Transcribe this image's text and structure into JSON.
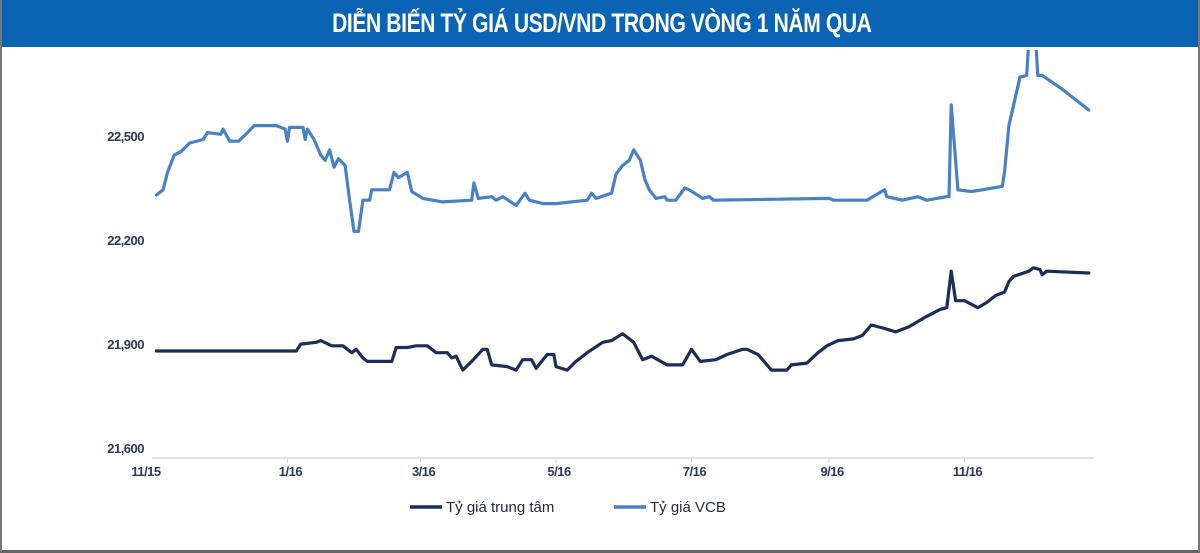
{
  "header": {
    "title": "DIỄN BIẾN TỶ GIÁ USD/VND TRONG VÒNG 1 NĂM QUA"
  },
  "chart_data": {
    "type": "line",
    "title": "DIỄN BIẾN TỶ GIÁ USD/VND TRONG VÒNG 1 NĂM QUA",
    "xlabel": "",
    "ylabel": "",
    "ylim": [
      21600,
      22762
    ],
    "xlim": [
      "2015-11-01",
      "2017-01-01"
    ],
    "yticks": [
      21600,
      21900,
      22200,
      22500
    ],
    "ytick_labels": [
      "21,600",
      "21,900",
      "22,200",
      "22,500"
    ],
    "xticks": [
      "2015-11-01",
      "2016-01-01",
      "2016-03-01",
      "2016-05-01",
      "2016-07-01",
      "2016-09-01",
      "2016-11-01"
    ],
    "xtick_labels": [
      "11/15",
      "1/16",
      "3/16",
      "5/16",
      "7/16",
      "9/16",
      "11/16"
    ],
    "grid": false,
    "legend": "bottom",
    "series": [
      {
        "name": "Tỷ giá trung tâm",
        "color": "#1c2d57",
        "points": [
          [
            "2015-11-03",
            21900
          ],
          [
            "2016-01-05",
            21900
          ],
          [
            "2016-01-07",
            21920
          ],
          [
            "2016-01-14",
            21925
          ],
          [
            "2016-01-16",
            21930
          ],
          [
            "2016-01-21",
            21915
          ],
          [
            "2016-01-26",
            21915
          ],
          [
            "2016-01-30",
            21895
          ],
          [
            "2016-02-01",
            21905
          ],
          [
            "2016-02-04",
            21880
          ],
          [
            "2016-02-06",
            21870
          ],
          [
            "2016-02-17",
            21870
          ],
          [
            "2016-02-19",
            21910
          ],
          [
            "2016-02-24",
            21910
          ],
          [
            "2016-02-28",
            21915
          ],
          [
            "2016-03-04",
            21915
          ],
          [
            "2016-03-08",
            21895
          ],
          [
            "2016-03-13",
            21895
          ],
          [
            "2016-03-15",
            21880
          ],
          [
            "2016-03-17",
            21885
          ],
          [
            "2016-03-20",
            21845
          ],
          [
            "2016-03-24",
            21870
          ],
          [
            "2016-03-29",
            21905
          ],
          [
            "2016-03-31",
            21905
          ],
          [
            "2016-04-02",
            21860
          ],
          [
            "2016-04-09",
            21855
          ],
          [
            "2016-04-13",
            21845
          ],
          [
            "2016-04-16",
            21875
          ],
          [
            "2016-04-20",
            21875
          ],
          [
            "2016-04-22",
            21850
          ],
          [
            "2016-04-27",
            21890
          ],
          [
            "2016-04-30",
            21890
          ],
          [
            "2016-05-01",
            21855
          ],
          [
            "2016-05-06",
            21845
          ],
          [
            "2016-05-10",
            21870
          ],
          [
            "2016-05-15",
            21895
          ],
          [
            "2016-05-22",
            21925
          ],
          [
            "2016-05-26",
            21930
          ],
          [
            "2016-05-31",
            21950
          ],
          [
            "2016-06-05",
            21925
          ],
          [
            "2016-06-09",
            21875
          ],
          [
            "2016-06-13",
            21885
          ],
          [
            "2016-06-20",
            21860
          ],
          [
            "2016-06-27",
            21860
          ],
          [
            "2016-07-01",
            21905
          ],
          [
            "2016-07-05",
            21870
          ],
          [
            "2016-07-12",
            21875
          ],
          [
            "2016-07-17",
            21890
          ],
          [
            "2016-07-24",
            21905
          ],
          [
            "2016-07-26",
            21905
          ],
          [
            "2016-07-31",
            21890
          ],
          [
            "2016-08-06",
            21845
          ],
          [
            "2016-08-13",
            21845
          ],
          [
            "2016-08-15",
            21860
          ],
          [
            "2016-08-22",
            21865
          ],
          [
            "2016-08-27",
            21895
          ],
          [
            "2016-08-31",
            21915
          ],
          [
            "2016-09-05",
            21930
          ],
          [
            "2016-09-12",
            21935
          ],
          [
            "2016-09-16",
            21945
          ],
          [
            "2016-09-20",
            21975
          ],
          [
            "2016-09-26",
            21965
          ],
          [
            "2016-10-01",
            21955
          ],
          [
            "2016-10-07",
            21970
          ],
          [
            "2016-10-15",
            22000
          ],
          [
            "2016-10-21",
            22020
          ],
          [
            "2016-10-24",
            22025
          ],
          [
            "2016-10-26",
            22130
          ],
          [
            "2016-10-28",
            22045
          ],
          [
            "2016-11-01",
            22045
          ],
          [
            "2016-11-07",
            22025
          ],
          [
            "2016-11-11",
            22040
          ],
          [
            "2016-11-15",
            22060
          ],
          [
            "2016-11-19",
            22070
          ],
          [
            "2016-11-21",
            22100
          ],
          [
            "2016-11-23",
            22115
          ],
          [
            "2016-11-30",
            22130
          ],
          [
            "2016-12-02",
            22140
          ],
          [
            "2016-12-05",
            22135
          ],
          [
            "2016-12-06",
            22120
          ],
          [
            "2016-12-08",
            22130
          ],
          [
            "2016-12-27",
            22125
          ]
        ]
      },
      {
        "name": "Tỷ giá VCB",
        "color": "#4a80c4",
        "points": [
          [
            "2015-11-03",
            22350
          ],
          [
            "2015-11-06",
            22365
          ],
          [
            "2015-11-08",
            22415
          ],
          [
            "2015-11-11",
            22465
          ],
          [
            "2015-11-14",
            22475
          ],
          [
            "2015-11-18",
            22500
          ],
          [
            "2015-11-24",
            22510
          ],
          [
            "2015-11-26",
            22530
          ],
          [
            "2015-12-02",
            22525
          ],
          [
            "2015-12-03",
            22540
          ],
          [
            "2015-12-06",
            22505
          ],
          [
            "2015-12-10",
            22505
          ],
          [
            "2015-12-14",
            22530
          ],
          [
            "2015-12-17",
            22550
          ],
          [
            "2015-12-27",
            22550
          ],
          [
            "2015-12-31",
            22540
          ],
          [
            "2016-01-01",
            22505
          ],
          [
            "2016-01-02",
            22545
          ],
          [
            "2016-01-08",
            22545
          ],
          [
            "2016-01-09",
            22510
          ],
          [
            "2016-01-10",
            22540
          ],
          [
            "2016-01-13",
            22510
          ],
          [
            "2016-01-16",
            22465
          ],
          [
            "2016-01-18",
            22450
          ],
          [
            "2016-01-20",
            22480
          ],
          [
            "2016-01-22",
            22430
          ],
          [
            "2016-01-24",
            22455
          ],
          [
            "2016-01-27",
            22435
          ],
          [
            "2016-01-29",
            22335
          ],
          [
            "2016-01-30",
            22290
          ],
          [
            "2016-01-31",
            22245
          ],
          [
            "2016-02-02",
            22245
          ],
          [
            "2016-02-04",
            22335
          ],
          [
            "2016-02-07",
            22335
          ],
          [
            "2016-02-08",
            22365
          ],
          [
            "2016-02-16",
            22365
          ],
          [
            "2016-02-18",
            22415
          ],
          [
            "2016-02-20",
            22400
          ],
          [
            "2016-02-24",
            22415
          ],
          [
            "2016-02-26",
            22360
          ],
          [
            "2016-03-02",
            22340
          ],
          [
            "2016-03-11",
            22330
          ],
          [
            "2016-03-24",
            22335
          ],
          [
            "2016-03-25",
            22385
          ],
          [
            "2016-03-27",
            22340
          ],
          [
            "2016-04-02",
            22345
          ],
          [
            "2016-04-04",
            22335
          ],
          [
            "2016-04-07",
            22345
          ],
          [
            "2016-04-13",
            22320
          ],
          [
            "2016-04-17",
            22355
          ],
          [
            "2016-04-19",
            22335
          ],
          [
            "2016-04-25",
            22325
          ],
          [
            "2016-05-01",
            22325
          ],
          [
            "2016-05-15",
            22335
          ],
          [
            "2016-05-17",
            22355
          ],
          [
            "2016-05-19",
            22340
          ],
          [
            "2016-05-26",
            22355
          ],
          [
            "2016-05-28",
            22410
          ],
          [
            "2016-05-31",
            22435
          ],
          [
            "2016-06-03",
            22450
          ],
          [
            "2016-06-05",
            22480
          ],
          [
            "2016-06-08",
            22450
          ],
          [
            "2016-06-10",
            22395
          ],
          [
            "2016-06-12",
            22365
          ],
          [
            "2016-06-15",
            22340
          ],
          [
            "2016-06-19",
            22345
          ],
          [
            "2016-06-20",
            22335
          ],
          [
            "2016-06-24",
            22335
          ],
          [
            "2016-06-28",
            22370
          ],
          [
            "2016-06-30",
            22365
          ],
          [
            "2016-07-06",
            22340
          ],
          [
            "2016-07-09",
            22345
          ],
          [
            "2016-07-11",
            22335
          ],
          [
            "2016-09-01",
            22340
          ],
          [
            "2016-09-03",
            22335
          ],
          [
            "2016-09-18",
            22335
          ],
          [
            "2016-09-26",
            22365
          ],
          [
            "2016-09-27",
            22345
          ],
          [
            "2016-10-04",
            22335
          ],
          [
            "2016-10-11",
            22345
          ],
          [
            "2016-10-15",
            22335
          ],
          [
            "2016-10-24",
            22345
          ],
          [
            "2016-10-25",
            22345
          ],
          [
            "2016-10-26",
            22610
          ],
          [
            "2016-10-29",
            22365
          ],
          [
            "2016-11-04",
            22360
          ],
          [
            "2016-11-09",
            22365
          ],
          [
            "2016-11-18",
            22375
          ],
          [
            "2016-11-19",
            22415
          ],
          [
            "2016-11-21",
            22550
          ],
          [
            "2016-11-26",
            22690
          ],
          [
            "2016-11-29",
            22695
          ],
          [
            "2016-11-30",
            22800
          ],
          [
            "2016-12-03",
            22800
          ],
          [
            "2016-12-04",
            22695
          ],
          [
            "2016-12-06",
            22695
          ],
          [
            "2016-12-15",
            22655
          ],
          [
            "2016-12-27",
            22595
          ]
        ]
      }
    ]
  }
}
